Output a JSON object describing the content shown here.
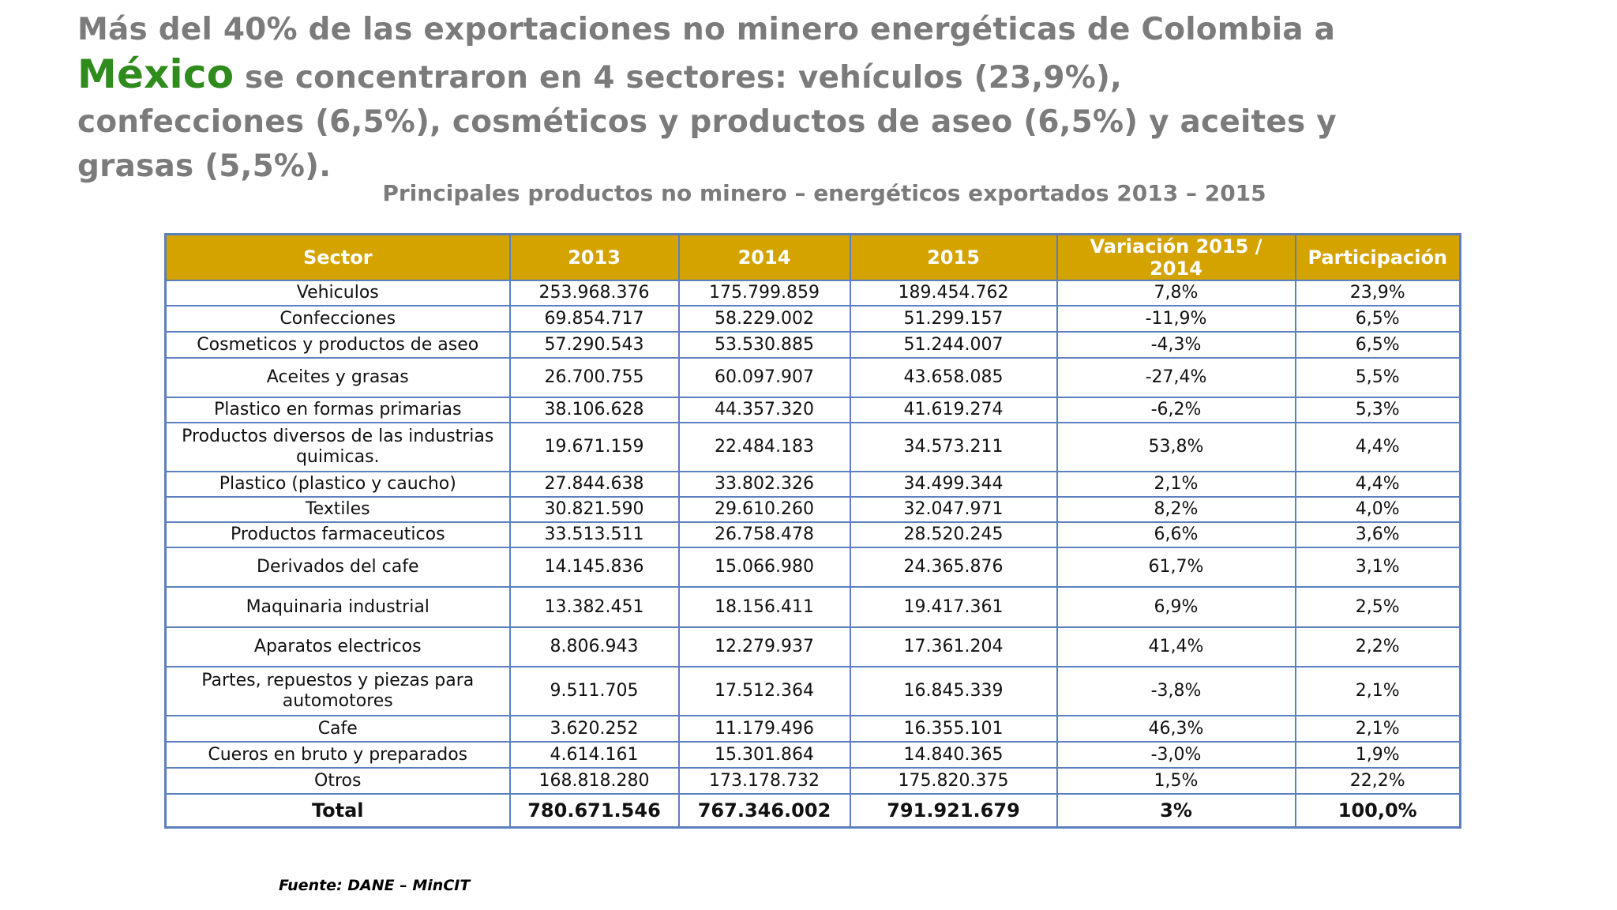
{
  "headline": {
    "part1": "Más del 40% de las exportaciones no minero  energéticas de Colombia a",
    "highlight": "México",
    "part2": " se concentraron en 4 sectores: vehículos (23,9%), confecciones (6,5%), cosméticos y productos de aseo (6,5%) y  aceites y grasas (5,5%).",
    "highlight_color": "#2e8b1c"
  },
  "table_title": "Principales productos no  minero – energéticos  exportados 2013 – 2015",
  "table": {
    "header_color": "#d4a300",
    "border_color": "#5b7fbf",
    "headers": [
      "Sector",
      "2013",
      "2014",
      "2015",
      "Variación 2015 / 2014",
      "Participación"
    ],
    "rows": [
      [
        "Vehiculos",
        "253.968.376",
        "175.799.859",
        "189.454.762",
        "7,8%",
        "23,9%"
      ],
      [
        "Confecciones",
        "69.854.717",
        "58.229.002",
        "51.299.157",
        "-11,9%",
        "6,5%"
      ],
      [
        "Cosmeticos y productos de aseo",
        "57.290.543",
        "53.530.885",
        "51.244.007",
        "-4,3%",
        "6,5%"
      ],
      [
        "Aceites y grasas",
        "26.700.755",
        "60.097.907",
        "43.658.085",
        "-27,4%",
        "5,5%"
      ],
      [
        "Plastico en formas primarias",
        "38.106.628",
        "44.357.320",
        "41.619.274",
        "-6,2%",
        "5,3%"
      ],
      [
        "Productos diversos de las industrias quimicas.",
        "19.671.159",
        "22.484.183",
        "34.573.211",
        "53,8%",
        "4,4%"
      ],
      [
        "Plastico (plastico y caucho)",
        "27.844.638",
        "33.802.326",
        "34.499.344",
        "2,1%",
        "4,4%"
      ],
      [
        "Textiles",
        "30.821.590",
        "29.610.260",
        "32.047.971",
        "8,2%",
        "4,0%"
      ],
      [
        "Productos farmaceuticos",
        "33.513.511",
        "26.758.478",
        "28.520.245",
        "6,6%",
        "3,6%"
      ],
      [
        "Derivados del cafe",
        "14.145.836",
        "15.066.980",
        "24.365.876",
        "61,7%",
        "3,1%"
      ],
      [
        "Maquinaria industrial",
        "13.382.451",
        "18.156.411",
        "19.417.361",
        "6,9%",
        "2,5%"
      ],
      [
        "Aparatos electricos",
        "8.806.943",
        "12.279.937",
        "17.361.204",
        "41,4%",
        "2,2%"
      ],
      [
        "Partes, repuestos y piezas para automotores",
        "9.511.705",
        "17.512.364",
        "16.845.339",
        "-3,8%",
        "2,1%"
      ],
      [
        "Cafe",
        "3.620.252",
        "11.179.496",
        "16.355.101",
        "46,3%",
        "2,1%"
      ],
      [
        "Cueros en bruto y preparados",
        "4.614.161",
        "15.301.864",
        "14.840.365",
        "-3,0%",
        "1,9%"
      ],
      [
        "Otros",
        "168.818.280",
        "173.178.732",
        "175.820.375",
        "1,5%",
        "22,2%"
      ]
    ],
    "total": [
      "Total",
      "780.671.546",
      "767.346.002",
      "791.921.679",
      "3%",
      "100,0%"
    ]
  },
  "source": "Fuente: DANE – MinCIT"
}
